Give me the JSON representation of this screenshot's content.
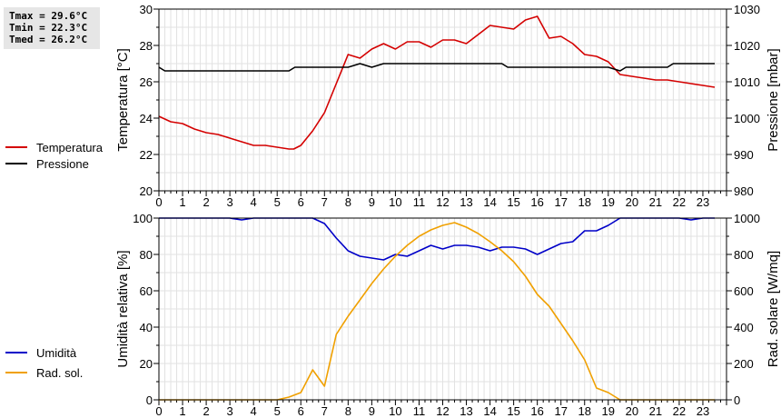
{
  "stats": {
    "tmax": "Tmax = 29.6°C",
    "tmin": "Tmin = 22.3°C",
    "tmed": "Tmed = 26.2°C"
  },
  "chart_data": [
    {
      "type": "line",
      "ylabel": "Temperatura [°C]",
      "ylabel_right": "Pressione [mbar]",
      "xlim": [
        0,
        24
      ],
      "xticks": [
        "0",
        "1",
        "2",
        "3",
        "4",
        "5",
        "6",
        "7",
        "8",
        "9",
        "10",
        "11",
        "12",
        "13",
        "14",
        "15",
        "16",
        "17",
        "18",
        "19",
        "20",
        "21",
        "22",
        "23"
      ],
      "ylim": [
        20,
        30
      ],
      "yticks": [
        "20",
        "22",
        "24",
        "26",
        "28",
        "30"
      ],
      "ylim_right": [
        980,
        1030
      ],
      "yticks_right": [
        "980",
        "990",
        "1000",
        "1010",
        "1020",
        "1030"
      ],
      "grid": true,
      "legend": "left",
      "colors": {
        "temperatura": "#d40000",
        "pressione": "#000000"
      },
      "series": [
        {
          "name": "Temperatura",
          "axis": "left",
          "x": [
            0,
            0.5,
            1,
            1.5,
            2,
            2.5,
            3,
            3.5,
            4,
            4.5,
            5,
            5.5,
            5.7,
            6,
            6.5,
            7,
            7.5,
            8,
            8.5,
            9,
            9.5,
            10,
            10.5,
            11,
            11.5,
            12,
            12.5,
            13,
            13.5,
            14,
            14.5,
            15,
            15.5,
            16,
            16.5,
            17,
            17.5,
            18,
            18.5,
            19,
            19.5,
            20,
            20.5,
            21,
            21.5,
            22,
            22.5,
            23,
            23.5
          ],
          "values": [
            24.1,
            23.8,
            23.7,
            23.4,
            23.2,
            23.1,
            22.9,
            22.7,
            22.5,
            22.5,
            22.4,
            22.3,
            22.3,
            22.5,
            23.3,
            24.3,
            25.9,
            27.5,
            27.3,
            27.8,
            28.1,
            27.8,
            28.2,
            28.2,
            27.9,
            28.3,
            28.3,
            28.1,
            28.6,
            29.1,
            29.0,
            28.9,
            29.4,
            29.6,
            28.4,
            28.5,
            28.1,
            27.5,
            27.4,
            27.1,
            26.4,
            26.3,
            26.2,
            26.1,
            26.1,
            26.0,
            25.9,
            25.8,
            25.7
          ]
        },
        {
          "name": "Pressione",
          "axis": "right",
          "x": [
            0,
            0.25,
            5.5,
            5.75,
            8,
            8.5,
            9,
            9.5,
            14.5,
            14.75,
            19,
            19.5,
            19.75,
            21.5,
            21.75,
            23.5
          ],
          "values": [
            1014,
            1013,
            1013,
            1014,
            1014,
            1015,
            1014,
            1015,
            1015,
            1014,
            1014,
            1013,
            1014,
            1014,
            1015,
            1015
          ]
        }
      ]
    },
    {
      "type": "line",
      "ylabel": "Umidità relativa [%]",
      "ylabel_right": "Rad. solare [W/mq]",
      "xlim": [
        0,
        24
      ],
      "xticks": [
        "0",
        "1",
        "2",
        "3",
        "4",
        "5",
        "6",
        "7",
        "8",
        "9",
        "10",
        "11",
        "12",
        "13",
        "14",
        "15",
        "16",
        "17",
        "18",
        "19",
        "20",
        "21",
        "22",
        "23"
      ],
      "ylim": [
        0,
        100
      ],
      "yticks": [
        "0",
        "20",
        "40",
        "60",
        "80",
        "100"
      ],
      "ylim_right": [
        0,
        1000
      ],
      "yticks_right": [
        "0",
        "200",
        "400",
        "600",
        "800",
        "1000"
      ],
      "grid": true,
      "legend": "left",
      "colors": {
        "umidita": "#0000c8",
        "radsol": "#f0a000"
      },
      "series": [
        {
          "name": "Umidità",
          "axis": "left",
          "x": [
            0,
            3,
            3.5,
            4,
            6.5,
            7,
            7.5,
            8,
            8.5,
            9,
            9.5,
            10,
            10.5,
            11,
            11.5,
            12,
            12.5,
            13,
            13.5,
            14,
            14.5,
            15,
            15.5,
            16,
            16.5,
            17,
            17.5,
            18,
            18.5,
            19,
            19.5,
            22,
            22.5,
            23,
            23.5
          ],
          "values": [
            100,
            100,
            99,
            100,
            100,
            97,
            89,
            82,
            79,
            78,
            77,
            80,
            79,
            82,
            85,
            83,
            85,
            85,
            84,
            82,
            84,
            84,
            83,
            80,
            83,
            86,
            87,
            93,
            93,
            96,
            100,
            100,
            99,
            100,
            100
          ]
        },
        {
          "name": "Rad. sol.",
          "axis": "right",
          "x": [
            0,
            5,
            5.5,
            6,
            6.5,
            7,
            7.5,
            8,
            8.5,
            9,
            9.5,
            10,
            10.5,
            11,
            11.5,
            12,
            12.5,
            13,
            13.5,
            14,
            14.5,
            15,
            15.5,
            16,
            16.5,
            17,
            17.5,
            18,
            18.5,
            19,
            19.5,
            23.5
          ],
          "values": [
            0,
            0,
            15,
            40,
            165,
            75,
            360,
            460,
            550,
            640,
            720,
            790,
            850,
            900,
            935,
            960,
            975,
            950,
            915,
            870,
            820,
            760,
            680,
            580,
            515,
            420,
            325,
            220,
            65,
            40,
            0,
            0
          ]
        }
      ]
    }
  ],
  "legends": [
    {
      "label": "Temperatura",
      "color": "#d40000"
    },
    {
      "label": "Pressione",
      "color": "#000000"
    },
    {
      "label": "Umidità",
      "color": "#0000c8"
    },
    {
      "label": "Rad. sol.",
      "color": "#f0a000"
    }
  ]
}
